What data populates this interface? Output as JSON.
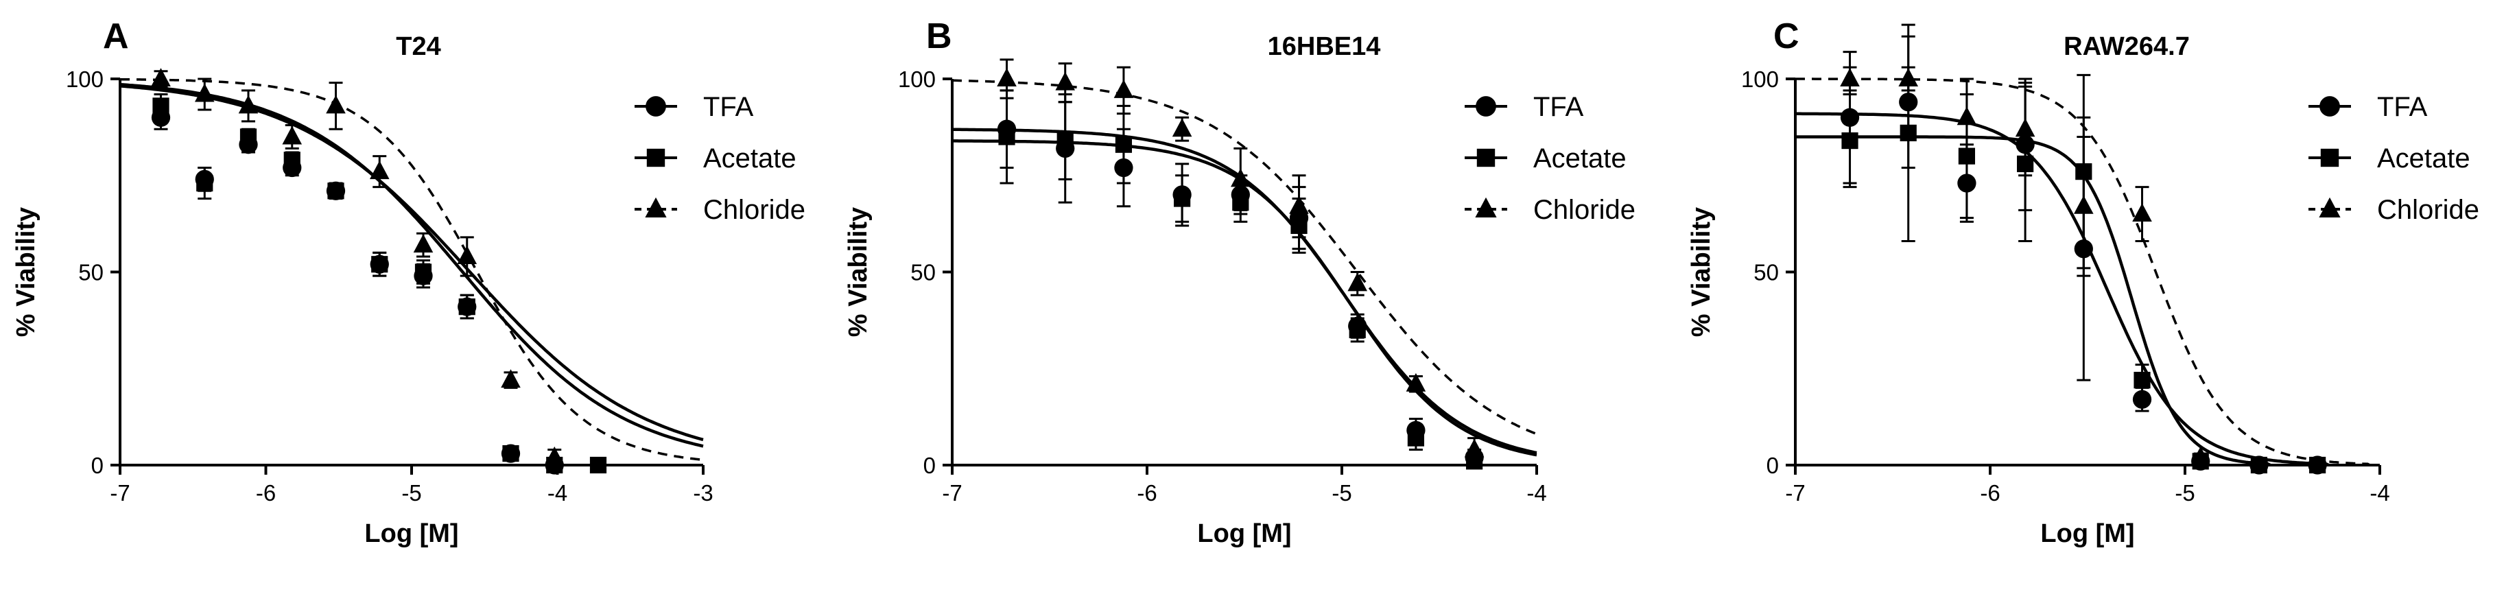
{
  "chart_data": [
    {
      "type": "line",
      "panel": "A",
      "title": "T24",
      "xlabel": "Log [M]",
      "ylabel": "% Viability",
      "xlim": [
        -7,
        -3
      ],
      "ylim": [
        0,
        100
      ],
      "xticks": [
        -7,
        -6,
        -5,
        -4,
        -3
      ],
      "yticks": [
        0,
        50,
        100
      ],
      "legend": "top-right",
      "series": [
        {
          "name": "TFA",
          "marker": "circle",
          "linestyle": "solid",
          "fit": {
            "top": 100,
            "bottom": 0,
            "logIC50": -4.65,
            "hill": 0.78
          },
          "x": [
            -6.72,
            -6.42,
            -6.12,
            -5.82,
            -5.52,
            -5.22,
            -4.92,
            -4.62,
            -4.32,
            -4.02
          ],
          "y": [
            90,
            74,
            83,
            77,
            71,
            52,
            49,
            41,
            3,
            0
          ],
          "err": [
            3,
            3,
            2,
            2,
            2,
            3,
            3,
            3,
            1,
            1
          ]
        },
        {
          "name": "Acetate",
          "marker": "square",
          "linestyle": "solid",
          "fit": {
            "top": 100,
            "bottom": 0,
            "logIC50": -4.6,
            "hill": 0.72
          },
          "x": [
            -6.72,
            -6.42,
            -6.12,
            -5.82,
            -5.52,
            -5.22,
            -4.92,
            -4.62,
            -4.32,
            -4.02,
            -3.72
          ],
          "y": [
            93,
            73,
            85,
            79,
            71,
            52,
            50,
            41,
            3,
            0,
            0
          ],
          "err": [
            3,
            4,
            2,
            2,
            2,
            3,
            3,
            3,
            1,
            1,
            1
          ]
        },
        {
          "name": "Chloride",
          "marker": "triangle",
          "linestyle": "dashed",
          "fit": {
            "top": 100,
            "bottom": 0,
            "logIC50": -4.55,
            "hill": 1.2
          },
          "x": [
            -6.72,
            -6.42,
            -6.12,
            -5.82,
            -5.52,
            -5.22,
            -4.92,
            -4.62,
            -4.32,
            -4.02
          ],
          "y": [
            100,
            96,
            93,
            85,
            93,
            76,
            57,
            54,
            22,
            2
          ],
          "err": [
            2,
            4,
            4,
            3,
            6,
            4,
            3,
            5,
            2,
            2
          ]
        }
      ]
    },
    {
      "type": "line",
      "panel": "B",
      "title": "16HBE14",
      "xlabel": "Log [M]",
      "ylabel": "% Viability",
      "xlim": [
        -7,
        -4
      ],
      "ylim": [
        0,
        100
      ],
      "xticks": [
        -7,
        -6,
        -5,
        -4
      ],
      "yticks": [
        0,
        50,
        100
      ],
      "legend": "top-right",
      "series": [
        {
          "name": "TFA",
          "marker": "circle",
          "linestyle": "solid",
          "fit": {
            "top": 84,
            "bottom": 0,
            "logIC50": -4.96,
            "hill": 1.55
          },
          "x": [
            -6.72,
            -6.42,
            -6.12,
            -5.82,
            -5.52,
            -5.22,
            -4.92,
            -4.62,
            -4.32
          ],
          "y": [
            87,
            82,
            77,
            70,
            70,
            64,
            36,
            9,
            2
          ],
          "err": [
            10,
            14,
            10,
            8,
            5,
            8,
            3,
            3,
            2
          ]
        },
        {
          "name": "Acetate",
          "marker": "square",
          "linestyle": "solid",
          "fit": {
            "top": 87,
            "bottom": 0,
            "logIC50": -4.98,
            "hill": 1.45
          },
          "x": [
            -6.72,
            -6.42,
            -6.12,
            -5.82,
            -5.52,
            -5.22,
            -4.92,
            -4.62,
            -4.32
          ],
          "y": [
            85,
            84,
            83,
            69,
            68,
            62,
            35,
            7,
            1
          ],
          "err": [
            12,
            10,
            10,
            6,
            5,
            7,
            3,
            3,
            2
          ]
        },
        {
          "name": "Chloride",
          "marker": "triangle",
          "linestyle": "dashed",
          "fit": {
            "top": 100,
            "bottom": 0,
            "logIC50": -4.92,
            "hill": 1.15
          },
          "x": [
            -6.72,
            -6.42,
            -6.12,
            -5.82,
            -5.52,
            -5.22,
            -4.92,
            -4.62,
            -4.32
          ],
          "y": [
            100,
            99,
            97,
            87,
            74,
            67,
            47,
            21,
            4
          ],
          "err": [
            5,
            5,
            6,
            3,
            8,
            8,
            3,
            2,
            3
          ]
        }
      ]
    },
    {
      "type": "line",
      "panel": "C",
      "title": "RAW264.7",
      "xlabel": "Log [M]",
      "ylabel": "% Viability",
      "xlim": [
        -7,
        -4
      ],
      "ylim": [
        0,
        100
      ],
      "xticks": [
        -7,
        -6,
        -5,
        -4
      ],
      "yticks": [
        0,
        50,
        100
      ],
      "legend": "top-right",
      "series": [
        {
          "name": "TFA",
          "marker": "circle",
          "linestyle": "solid",
          "fit": {
            "top": 91,
            "bottom": 0,
            "logIC50": -5.4,
            "hill": 2.2
          },
          "x": [
            -6.72,
            -6.42,
            -6.12,
            -5.82,
            -5.52,
            -5.22,
            -4.92,
            -4.62,
            -4.32
          ],
          "y": [
            90,
            94,
            73,
            83,
            56,
            17,
            1,
            0,
            0
          ],
          "err": [
            17,
            17,
            10,
            17,
            34,
            3,
            1,
            1,
            1
          ]
        },
        {
          "name": "Acetate",
          "marker": "square",
          "linestyle": "solid",
          "fit": {
            "top": 85,
            "bottom": 0,
            "logIC50": -5.27,
            "hill": 3.5
          },
          "x": [
            -6.72,
            -6.42,
            -6.12,
            -5.82,
            -5.52,
            -5.22,
            -4.92,
            -4.62,
            -4.32
          ],
          "y": [
            84,
            86,
            80,
            78,
            76,
            22,
            1,
            0,
            0
          ],
          "err": [
            12,
            28,
            16,
            20,
            25,
            4,
            1,
            1,
            1
          ]
        },
        {
          "name": "Chloride",
          "marker": "triangle",
          "linestyle": "dashed",
          "fit": {
            "top": 100,
            "bottom": 0,
            "logIC50": -5.15,
            "hill": 2.3
          },
          "x": [
            -6.72,
            -6.42,
            -6.12,
            -5.82,
            -5.52,
            -5.22,
            -4.92
          ],
          "y": [
            100,
            100,
            90,
            87,
            67,
            65,
            2
          ],
          "err": [
            3,
            3,
            10,
            12,
            18,
            7,
            1
          ]
        }
      ]
    }
  ]
}
